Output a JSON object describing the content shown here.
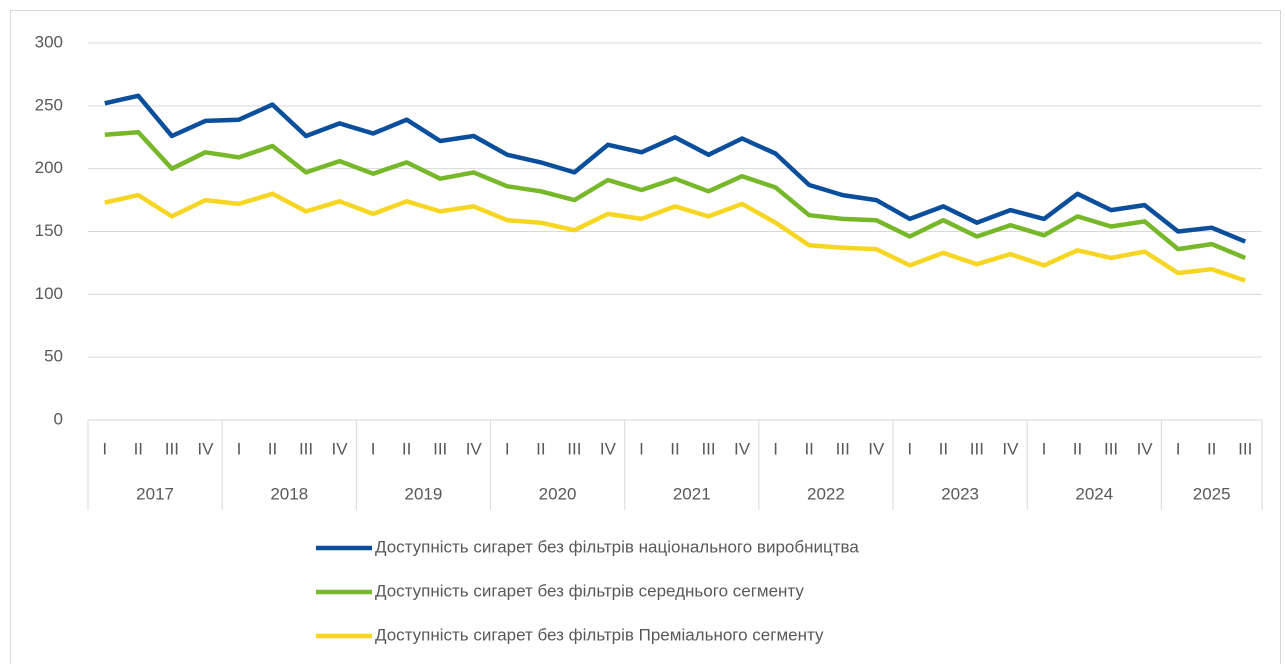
{
  "chart_data": {
    "type": "line",
    "category_groups": [
      {
        "label": "2017",
        "quarters": [
          "I",
          "II",
          "III",
          "IV"
        ]
      },
      {
        "label": "2018",
        "quarters": [
          "I",
          "II",
          "III",
          "IV"
        ]
      },
      {
        "label": "2019",
        "quarters": [
          "I",
          "II",
          "III",
          "IV"
        ]
      },
      {
        "label": "2020",
        "quarters": [
          "I",
          "II",
          "III",
          "IV"
        ]
      },
      {
        "label": "2021",
        "quarters": [
          "I",
          "II",
          "III",
          "IV"
        ]
      },
      {
        "label": "2022",
        "quarters": [
          "I",
          "II",
          "III",
          "IV"
        ]
      },
      {
        "label": "2023",
        "quarters": [
          "I",
          "II",
          "III",
          "IV"
        ]
      },
      {
        "label": "2024",
        "quarters": [
          "I",
          "II",
          "III",
          "IV"
        ]
      },
      {
        "label": "2025",
        "quarters": [
          "I",
          "II",
          "III"
        ]
      }
    ],
    "series": [
      {
        "name": "Доступність сигарет без фільтрів національного виробництва",
        "color": "#0b4f9c",
        "values": [
          252,
          258,
          226,
          238,
          239,
          251,
          226,
          236,
          228,
          239,
          222,
          226,
          211,
          205,
          197,
          219,
          213,
          225,
          211,
          224,
          212,
          187,
          179,
          175,
          160,
          170,
          157,
          167,
          160,
          180,
          167,
          171,
          150,
          153,
          142
        ]
      },
      {
        "name": "Доступність сигарет без фільтрів середнього сегменту",
        "color": "#76b82a",
        "values": [
          227,
          229,
          200,
          213,
          209,
          218,
          197,
          206,
          196,
          205,
          192,
          197,
          186,
          182,
          175,
          191,
          183,
          192,
          182,
          194,
          185,
          163,
          160,
          159,
          146,
          159,
          146,
          155,
          147,
          162,
          154,
          158,
          136,
          140,
          129
        ]
      },
      {
        "name": "Доступність сигарет без фільтрів Преміального сегменту",
        "color": "#f6d523",
        "values": [
          173,
          179,
          162,
          175,
          172,
          180,
          166,
          174,
          164,
          174,
          166,
          170,
          159,
          157,
          151,
          164,
          160,
          170,
          162,
          172,
          157,
          139,
          137,
          136,
          123,
          133,
          124,
          132,
          123,
          135,
          129,
          134,
          117,
          120,
          111
        ]
      }
    ],
    "ylim": [
      0,
      300
    ],
    "yticks": [
      0,
      50,
      100,
      150,
      200,
      250,
      300
    ],
    "grid": true,
    "legend": "bottom"
  }
}
